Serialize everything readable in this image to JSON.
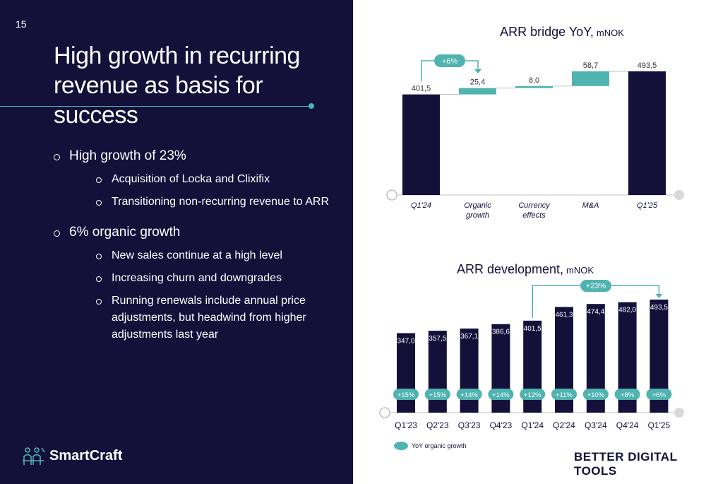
{
  "slide": {
    "page_number": "15",
    "headline": "High growth in recurring revenue as basis for success",
    "bullets": [
      {
        "text": "High growth of 23%",
        "subs": [
          "Acquisition of Locka and Clixifix",
          "Transitioning non-recurring revenue to ARR"
        ]
      },
      {
        "text": "6% organic growth",
        "subs": [
          "New sales continue at a high level",
          "Increasing churn and downgrades",
          "Running renewals include annual price adjustments, but headwind from higher adjustments last year"
        ]
      }
    ],
    "logo_text": "SmartCraft",
    "tagline": "BETTER DIGITAL TOOLS"
  },
  "colors": {
    "navy": "#13103a",
    "teal": "#4fb3b0",
    "grey": "#d9d9d9"
  },
  "chart_data": [
    {
      "type": "bar",
      "subtype": "waterfall",
      "title": "ARR bridge YoY,",
      "title_unit": "mNOK",
      "categories": [
        "Q1'24",
        "Organic growth",
        "Currency effects",
        "M&A",
        "Q1'25"
      ],
      "steps": [
        {
          "kind": "total",
          "value": 401.5,
          "label": "401,5"
        },
        {
          "kind": "delta",
          "value": 25.4,
          "label": "25,4"
        },
        {
          "kind": "delta",
          "value": 8.0,
          "label": "8,0"
        },
        {
          "kind": "delta",
          "value": 58.7,
          "label": "58,7"
        },
        {
          "kind": "total",
          "value": 493.5,
          "label": "493,5"
        }
      ],
      "annotation": "+6%"
    },
    {
      "type": "bar",
      "title": "ARR development,",
      "title_unit": "mNOK",
      "categories": [
        "Q1'23",
        "Q2'23",
        "Q3'23",
        "Q4'23",
        "Q1'24",
        "Q2'24",
        "Q3'24",
        "Q4'24",
        "Q1'25"
      ],
      "values": [
        347.0,
        357.5,
        367.1,
        386.6,
        401.5,
        461.3,
        474.4,
        482.0,
        493.5
      ],
      "value_labels": [
        "347,0",
        "357,5",
        "367,1",
        "386,6",
        "401,5",
        "461,3",
        "474,4",
        "482,0",
        "493,5"
      ],
      "growth_labels": [
        "+15%",
        "+15%",
        "+14%",
        "+14%",
        "+12%",
        "+11%",
        "+10%",
        "+8%",
        "+6%"
      ],
      "annotation": "+23%",
      "legend": "YoY organic growth"
    }
  ]
}
